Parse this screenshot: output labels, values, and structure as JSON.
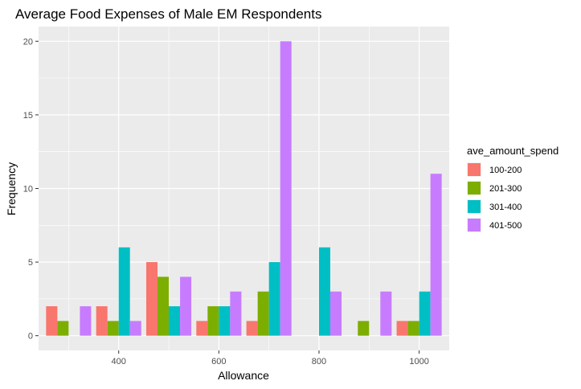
{
  "chart_data": {
    "type": "bar",
    "title": "Average Food Expenses of Male EM Respondents",
    "xlabel": "Allowance",
    "ylabel": "Frequency",
    "xlim": [
      240,
      1060
    ],
    "ylim": [
      -1,
      21
    ],
    "x_ticks": [
      400,
      600,
      800,
      1000
    ],
    "y_ticks": [
      0,
      5,
      10,
      15,
      20
    ],
    "x_tick_labels": [
      "400",
      "600",
      "800",
      "1000"
    ],
    "y_tick_labels": [
      "0",
      "5",
      "10",
      "15",
      "20"
    ],
    "grid": true,
    "legend_placement": "right",
    "legend_title": "ave_amount_spend",
    "categories": [
      300,
      400,
      500,
      600,
      700,
      800,
      900,
      1000
    ],
    "series": [
      {
        "name": "100-200",
        "color": "#F8766D",
        "values": [
          2,
          2,
          5,
          1,
          1,
          0,
          0,
          1
        ]
      },
      {
        "name": "201-300",
        "color": "#7CAE00",
        "values": [
          1,
          1,
          4,
          2,
          3,
          0,
          1,
          1
        ]
      },
      {
        "name": "301-400",
        "color": "#00BFC4",
        "values": [
          0,
          6,
          2,
          2,
          5,
          6,
          0,
          3
        ]
      },
      {
        "name": "401-500",
        "color": "#C77CFF",
        "values": [
          2,
          1,
          4,
          3,
          20,
          3,
          3,
          11
        ]
      }
    ]
  }
}
